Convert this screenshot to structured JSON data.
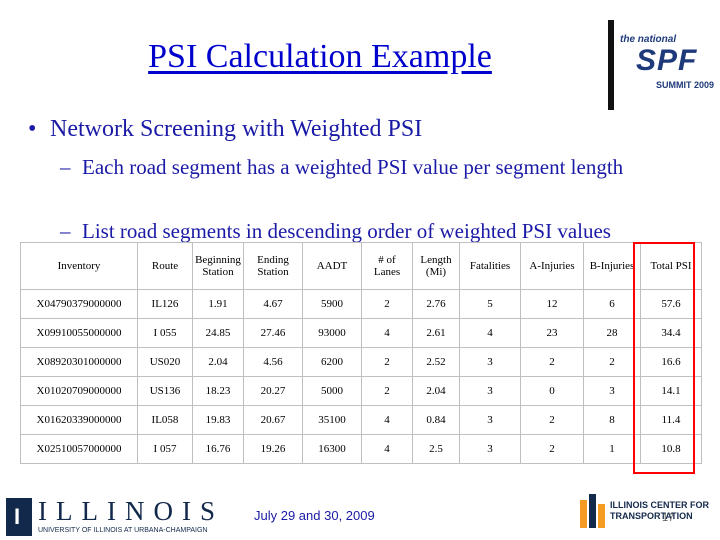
{
  "slide": {
    "title": "PSI Calculation Example",
    "bullet": "Network Screening with Weighted PSI",
    "subbullets": [
      "Each road segment has a weighted PSI value per segment length",
      "List road segments in descending order of weighted PSI values"
    ],
    "date": "July 29 and 30, 2009",
    "page_number": "17"
  },
  "logos": {
    "spf": {
      "small": "the national",
      "big": "SPF",
      "year": "SUMMIT 2009"
    },
    "illinois": {
      "word": "ILLINOIS",
      "shield_letter": "I",
      "subtitle": "UNIVERSITY OF ILLINOIS AT URBANA-CHAMPAIGN"
    },
    "ict": {
      "line1": "ILLINOIS CENTER FOR",
      "line2": "TRANSPORTATION"
    }
  },
  "table": {
    "headers": [
      "Inventory",
      "Route",
      "Beginning Station",
      "Ending Station",
      "AADT",
      "# of Lanes",
      "Length (Mi)",
      "Fatalities",
      "A-Injuries",
      "B-Injuries",
      "Total PSI"
    ],
    "rows": [
      [
        "X04790379000000",
        "IL126",
        "1.91",
        "4.67",
        "5900",
        "2",
        "2.76",
        "5",
        "12",
        "6",
        "57.6"
      ],
      [
        "X09910055000000",
        "I 055",
        "24.85",
        "27.46",
        "93000",
        "4",
        "2.61",
        "4",
        "23",
        "28",
        "34.4"
      ],
      [
        "X08920301000000",
        "US020",
        "2.04",
        "4.56",
        "6200",
        "2",
        "2.52",
        "3",
        "2",
        "2",
        "16.6"
      ],
      [
        "X01020709000000",
        "US136",
        "18.23",
        "20.27",
        "5000",
        "2",
        "2.04",
        "3",
        "0",
        "3",
        "14.1"
      ],
      [
        "X01620339000000",
        "IL058",
        "19.83",
        "20.67",
        "35100",
        "4",
        "0.84",
        "3",
        "2",
        "8",
        "11.4"
      ],
      [
        "X02510057000000",
        "I 057",
        "16.76",
        "19.26",
        "16300",
        "4",
        "2.5",
        "3",
        "2",
        "1",
        "10.8"
      ]
    ]
  },
  "colors": {
    "title": "#0000cc",
    "body_text": "#1a1aa6",
    "highlight": "#ff0000",
    "logo_navy": "#13294b"
  }
}
